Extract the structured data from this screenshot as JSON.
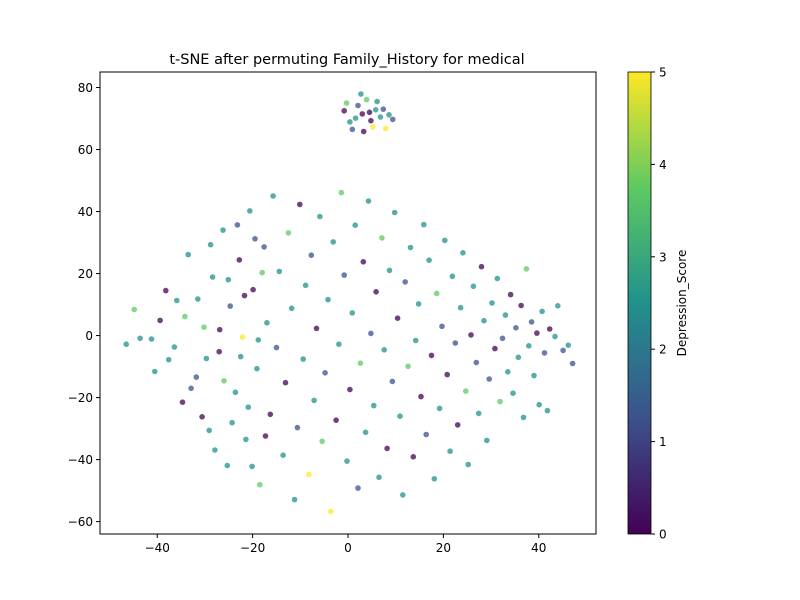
{
  "chart_data": {
    "type": "scatter",
    "title": "t-SNE after permuting Family_History for medical",
    "xlabel": "",
    "ylabel": "",
    "xlim": [
      -52,
      52
    ],
    "ylim": [
      -64,
      85
    ],
    "xticks": [
      -40,
      -20,
      0,
      20,
      40
    ],
    "yticks": [
      -60,
      -40,
      -20,
      0,
      20,
      40,
      60,
      80
    ],
    "xtick_labels": [
      "−40",
      "−20",
      "0",
      "20",
      "40"
    ],
    "ytick_labels": [
      "−60",
      "−40",
      "−20",
      "0",
      "20",
      "40",
      "60",
      "80"
    ],
    "grid": false,
    "colorbar": {
      "label": "Depression_Score",
      "range": [
        0,
        5
      ],
      "ticks": [
        0,
        1,
        2,
        3,
        4,
        5
      ],
      "tick_labels": [
        "0",
        "1",
        "2",
        "3",
        "4",
        "5"
      ],
      "colormap": "viridis",
      "colors": [
        "#440154",
        "#3b528b",
        "#21918c",
        "#5ec962",
        "#fde725"
      ]
    },
    "points": [
      [
        2.1,
        74.2,
        1
      ],
      [
        4.5,
        72.0,
        0
      ],
      [
        6.8,
        70.5,
        3
      ],
      [
        0.4,
        68.9,
        2
      ],
      [
        3.9,
        76.1,
        4
      ],
      [
        7.4,
        73.0,
        1
      ],
      [
        -0.8,
        72.5,
        0
      ],
      [
        5.2,
        67.3,
        5
      ],
      [
        8.6,
        71.2,
        2
      ],
      [
        1.6,
        70.1,
        3
      ],
      [
        3.3,
        65.8,
        0
      ],
      [
        6.1,
        75.5,
        2
      ],
      [
        -0.3,
        75.0,
        4
      ],
      [
        9.4,
        69.7,
        1
      ],
      [
        4.8,
        69.3,
        0
      ],
      [
        2.7,
        77.9,
        3
      ],
      [
        0.9,
        66.5,
        1
      ],
      [
        7.9,
        66.8,
        5
      ],
      [
        5.8,
        72.8,
        2
      ],
      [
        3.0,
        71.5,
        0
      ],
      [
        -46.5,
        -2.8,
        2
      ],
      [
        -44.8,
        8.4,
        4
      ],
      [
        -41.2,
        -1.1,
        3
      ],
      [
        -39.4,
        4.9,
        0
      ],
      [
        -37.6,
        -7.8,
        2
      ],
      [
        -35.9,
        11.3,
        3
      ],
      [
        -34.7,
        -21.5,
        0
      ],
      [
        -33.5,
        26.1,
        2
      ],
      [
        -31.8,
        -13.4,
        1
      ],
      [
        -30.2,
        2.7,
        4
      ],
      [
        -29.1,
        -30.6,
        3
      ],
      [
        -28.4,
        18.9,
        2
      ],
      [
        -27.0,
        -5.2,
        0
      ],
      [
        -26.2,
        34.0,
        3
      ],
      [
        -25.3,
        -41.9,
        2
      ],
      [
        -24.7,
        9.5,
        1
      ],
      [
        -23.6,
        -18.3,
        3
      ],
      [
        -22.8,
        24.4,
        0
      ],
      [
        -22.1,
        -0.5,
        5
      ],
      [
        -21.4,
        -33.5,
        2
      ],
      [
        -20.6,
        40.2,
        3
      ],
      [
        -19.9,
        14.8,
        0
      ],
      [
        -19.1,
        -10.7,
        2
      ],
      [
        -18.5,
        -48.1,
        4
      ],
      [
        -17.6,
        28.6,
        1
      ],
      [
        -17.0,
        4.1,
        3
      ],
      [
        -16.3,
        -25.4,
        0
      ],
      [
        -15.7,
        45.0,
        2
      ],
      [
        -15.0,
        -3.9,
        1
      ],
      [
        -14.4,
        20.7,
        3
      ],
      [
        -13.6,
        -38.6,
        2
      ],
      [
        -13.1,
        -15.2,
        0
      ],
      [
        -12.5,
        33.1,
        4
      ],
      [
        -11.8,
        8.8,
        2
      ],
      [
        -11.2,
        -52.9,
        3
      ],
      [
        -10.6,
        -29.7,
        1
      ],
      [
        -10.1,
        42.3,
        0
      ],
      [
        -9.4,
        -7.6,
        3
      ],
      [
        -8.9,
        16.2,
        2
      ],
      [
        -8.2,
        -44.8,
        5
      ],
      [
        -7.7,
        25.9,
        1
      ],
      [
        -7.1,
        -20.9,
        3
      ],
      [
        -6.6,
        2.3,
        0
      ],
      [
        -5.9,
        38.4,
        2
      ],
      [
        -5.4,
        -34.1,
        4
      ],
      [
        -4.8,
        -12.0,
        1
      ],
      [
        -4.2,
        11.6,
        3
      ],
      [
        -3.6,
        -56.7,
        5
      ],
      [
        -3.1,
        30.2,
        2
      ],
      [
        -2.5,
        -27.3,
        0
      ],
      [
        -1.9,
        -2.8,
        3
      ],
      [
        -1.4,
        46.1,
        4
      ],
      [
        -0.8,
        19.5,
        1
      ],
      [
        -0.2,
        -40.5,
        2
      ],
      [
        0.4,
        -17.4,
        0
      ],
      [
        0.9,
        7.3,
        3
      ],
      [
        1.5,
        35.6,
        2
      ],
      [
        2.1,
        -49.2,
        1
      ],
      [
        2.6,
        -8.9,
        4
      ],
      [
        3.2,
        23.8,
        0
      ],
      [
        3.7,
        -31.2,
        3
      ],
      [
        4.3,
        43.4,
        2
      ],
      [
        4.8,
        0.7,
        1
      ],
      [
        5.4,
        -22.6,
        3
      ],
      [
        5.9,
        14.1,
        0
      ],
      [
        6.5,
        -45.7,
        2
      ],
      [
        7.1,
        31.5,
        4
      ],
      [
        7.6,
        -4.6,
        3
      ],
      [
        8.2,
        -36.4,
        0
      ],
      [
        8.7,
        21.0,
        2
      ],
      [
        9.3,
        -14.8,
        1
      ],
      [
        9.8,
        39.7,
        3
      ],
      [
        10.4,
        5.6,
        0
      ],
      [
        10.9,
        -26.0,
        2
      ],
      [
        11.5,
        -51.4,
        3
      ],
      [
        12.0,
        17.3,
        1
      ],
      [
        12.6,
        -9.9,
        4
      ],
      [
        13.1,
        28.4,
        2
      ],
      [
        13.7,
        -39.1,
        0
      ],
      [
        14.2,
        -1.6,
        3
      ],
      [
        14.8,
        10.2,
        2
      ],
      [
        15.3,
        -19.7,
        0
      ],
      [
        15.9,
        35.8,
        3
      ],
      [
        16.4,
        -31.9,
        1
      ],
      [
        17.0,
        24.3,
        2
      ],
      [
        17.5,
        -6.4,
        0
      ],
      [
        18.1,
        -46.2,
        3
      ],
      [
        18.6,
        13.6,
        4
      ],
      [
        19.2,
        -23.5,
        2
      ],
      [
        19.7,
        3.0,
        1
      ],
      [
        20.3,
        30.7,
        3
      ],
      [
        20.8,
        -12.6,
        0
      ],
      [
        21.4,
        -37.3,
        2
      ],
      [
        21.9,
        19.1,
        3
      ],
      [
        22.5,
        -2.4,
        1
      ],
      [
        23.0,
        -28.8,
        0
      ],
      [
        23.6,
        9.0,
        2
      ],
      [
        24.1,
        26.7,
        3
      ],
      [
        24.7,
        -17.9,
        4
      ],
      [
        25.2,
        -41.6,
        2
      ],
      [
        25.8,
        0.2,
        0
      ],
      [
        26.3,
        15.9,
        3
      ],
      [
        26.9,
        -8.7,
        1
      ],
      [
        27.4,
        -25.1,
        2
      ],
      [
        28.0,
        22.2,
        0
      ],
      [
        28.5,
        4.8,
        3
      ],
      [
        29.1,
        -33.8,
        2
      ],
      [
        29.6,
        -14.0,
        1
      ],
      [
        30.2,
        10.5,
        3
      ],
      [
        30.8,
        -4.2,
        0
      ],
      [
        31.3,
        18.4,
        2
      ],
      [
        31.9,
        -21.3,
        4
      ],
      [
        32.4,
        -0.9,
        1
      ],
      [
        33.0,
        6.6,
        3
      ],
      [
        33.5,
        -11.7,
        2
      ],
      [
        34.1,
        13.2,
        0
      ],
      [
        34.6,
        -18.6,
        3
      ],
      [
        35.2,
        2.5,
        1
      ],
      [
        35.7,
        -7.0,
        2
      ],
      [
        36.3,
        9.7,
        0
      ],
      [
        36.8,
        -26.4,
        3
      ],
      [
        37.4,
        21.5,
        4
      ],
      [
        37.9,
        -3.3,
        2
      ],
      [
        38.5,
        4.4,
        1
      ],
      [
        39.0,
        -12.9,
        3
      ],
      [
        39.6,
        0.8,
        0
      ],
      [
        40.1,
        -22.3,
        2
      ],
      [
        40.7,
        7.8,
        3
      ],
      [
        41.2,
        -5.6,
        1
      ],
      [
        41.8,
        -24.2,
        3
      ],
      [
        42.3,
        2.1,
        0
      ],
      [
        43.4,
        -0.3,
        2
      ],
      [
        44.0,
        9.6,
        3
      ],
      [
        45.1,
        -4.8,
        1
      ],
      [
        46.2,
        -3.1,
        2
      ],
      [
        47.1,
        -9.0,
        1
      ],
      [
        -43.6,
        -0.9,
        2
      ],
      [
        -40.5,
        -11.6,
        3
      ],
      [
        -38.2,
        14.5,
        0
      ],
      [
        -36.4,
        -3.7,
        2
      ],
      [
        -34.2,
        6.1,
        4
      ],
      [
        -32.9,
        -17.0,
        1
      ],
      [
        -31.5,
        11.8,
        3
      ],
      [
        -30.6,
        -26.2,
        0
      ],
      [
        -29.7,
        -7.4,
        2
      ],
      [
        -28.8,
        29.3,
        3
      ],
      [
        -27.9,
        -36.9,
        2
      ],
      [
        -26.9,
        1.9,
        0
      ],
      [
        -26.0,
        -14.6,
        4
      ],
      [
        -25.1,
        18.0,
        2
      ],
      [
        -24.3,
        -28.1,
        3
      ],
      [
        -23.2,
        35.7,
        1
      ],
      [
        -22.5,
        -6.8,
        2
      ],
      [
        -21.7,
        12.9,
        0
      ],
      [
        -20.9,
        -23.1,
        3
      ],
      [
        -20.1,
        -42.2,
        2
      ],
      [
        -19.5,
        31.2,
        1
      ],
      [
        -18.8,
        -1.4,
        3
      ],
      [
        -18.0,
        20.3,
        4
      ],
      [
        -17.3,
        -32.4,
        0
      ]
    ]
  }
}
